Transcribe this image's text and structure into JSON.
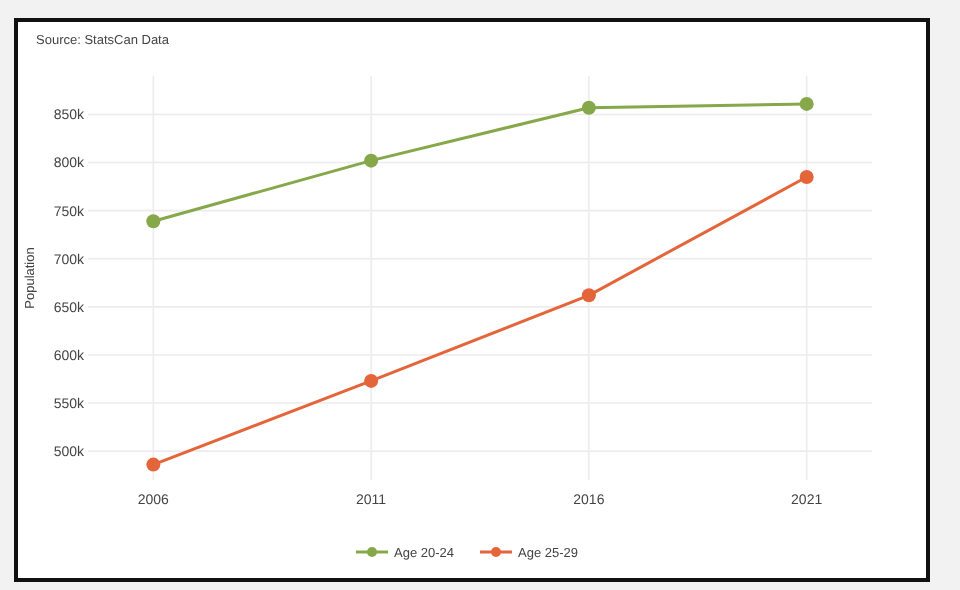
{
  "chart_data": {
    "type": "line",
    "annotations": [
      "Source: StatsCan Data"
    ],
    "ylabel": "Population",
    "categories": [
      "2006",
      "2011",
      "2016",
      "2021"
    ],
    "series": [
      {
        "name": "Age 20-24",
        "color": "#86a84a",
        "values": [
          739000,
          802000,
          857000,
          861000
        ]
      },
      {
        "name": "Age 25-29",
        "color": "#e5653a",
        "values": [
          486000,
          573000,
          662000,
          785000
        ]
      }
    ],
    "ylim": [
      470000,
      890000
    ],
    "yticks": [
      {
        "value": 500000,
        "label": "500k"
      },
      {
        "value": 550000,
        "label": "550k"
      },
      {
        "value": 600000,
        "label": "600k"
      },
      {
        "value": 650000,
        "label": "650k"
      },
      {
        "value": 700000,
        "label": "700k"
      },
      {
        "value": 750000,
        "label": "750k"
      },
      {
        "value": 800000,
        "label": "800k"
      },
      {
        "value": 850000,
        "label": "850k"
      }
    ],
    "grid": true,
    "legend": "bottom",
    "marker": "circle",
    "line_style": "solid"
  }
}
